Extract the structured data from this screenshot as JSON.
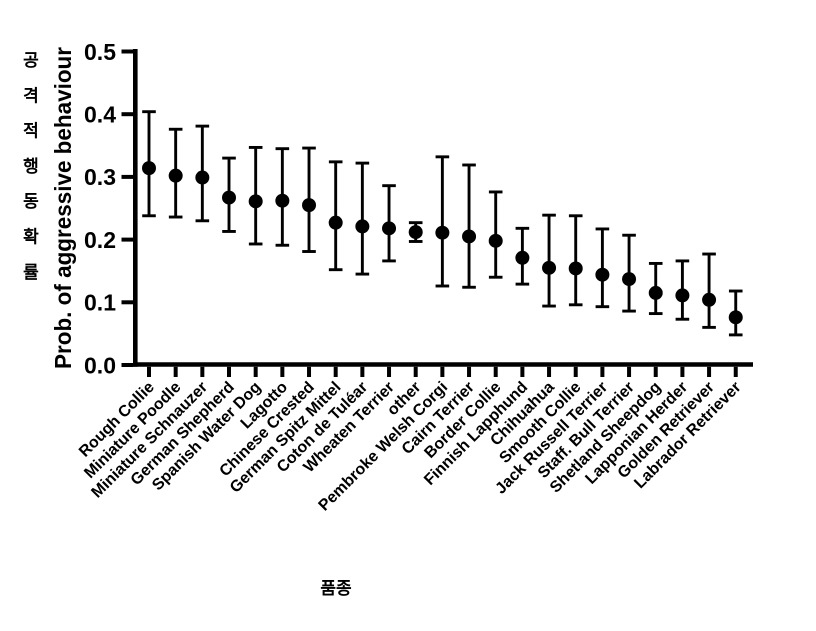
{
  "chart_data": {
    "type": "scatter",
    "title": "",
    "xlabel": "품종",
    "ylabel": "Prob. of aggressive behaviour",
    "ylabel_korean": "공격적행동확률",
    "ylim": [
      0.0,
      0.5
    ],
    "ytick_labels": [
      "0.0",
      "0.1",
      "0.2",
      "0.3",
      "0.4",
      "0.5"
    ],
    "grid": false,
    "legend": "none",
    "marker": "filled-circle-with-error-bars",
    "marker_color": "#000000",
    "categories": [
      "Rough Collie",
      "Miniature Poodle",
      "Miniature Schnauzer",
      "German Shepherd",
      "Spanish Water Dog",
      "Lagotto",
      "Chinese Crested",
      "German Spitz Mittel",
      "Coton de Tuléar",
      "Wheaten Terrier",
      "other",
      "Pembroke Welsh Corgi",
      "Cairn Terrier",
      "Border Collie",
      "Finnish Lapphund",
      "Chihuahua",
      "Smooth Collie",
      "Jack Russell Terrier",
      "Staff. Bull Terrier",
      "Shetland Sheepdog",
      "Lapponian Herder",
      "Golden Retriever",
      "Labrador Retriever"
    ],
    "values": [
      0.314,
      0.302,
      0.299,
      0.267,
      0.261,
      0.262,
      0.255,
      0.227,
      0.221,
      0.218,
      0.212,
      0.211,
      0.205,
      0.198,
      0.171,
      0.155,
      0.154,
      0.144,
      0.137,
      0.115,
      0.111,
      0.104,
      0.076
    ],
    "ci_lower": [
      0.238,
      0.236,
      0.23,
      0.213,
      0.193,
      0.191,
      0.181,
      0.152,
      0.145,
      0.166,
      0.197,
      0.126,
      0.124,
      0.14,
      0.129,
      0.094,
      0.096,
      0.093,
      0.086,
      0.082,
      0.073,
      0.06,
      0.048
    ],
    "ci_upper": [
      0.404,
      0.376,
      0.381,
      0.33,
      0.347,
      0.345,
      0.346,
      0.324,
      0.322,
      0.286,
      0.227,
      0.332,
      0.319,
      0.276,
      0.218,
      0.239,
      0.238,
      0.217,
      0.207,
      0.162,
      0.166,
      0.177,
      0.118
    ]
  }
}
